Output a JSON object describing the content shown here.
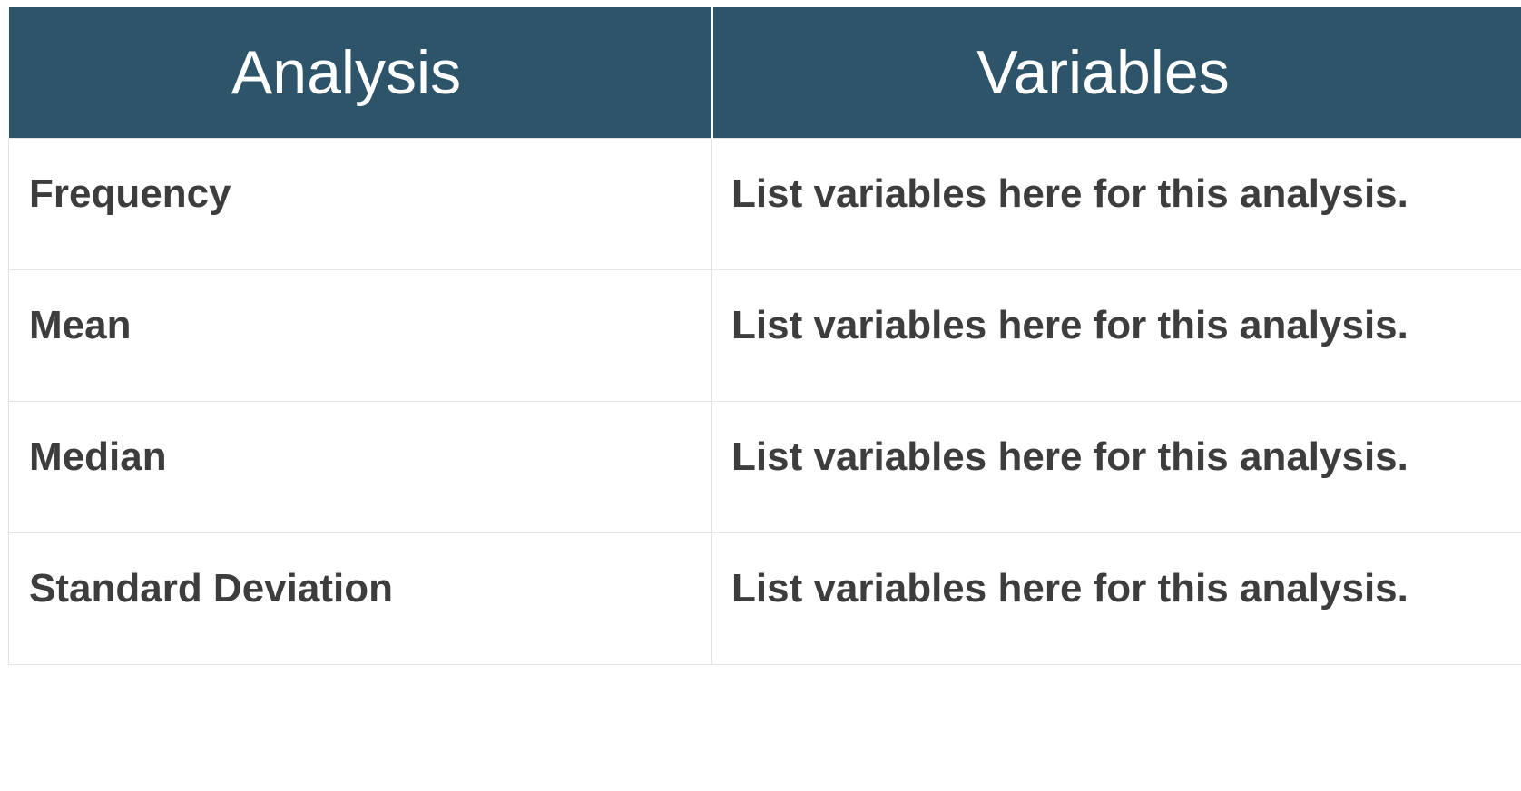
{
  "table": {
    "headers": {
      "analysis": "Analysis",
      "variables": "Variables"
    },
    "rows": [
      {
        "analysis": "Frequency",
        "variables": "List variables here for this analysis."
      },
      {
        "analysis": "Mean",
        "variables": "List variables here for this analysis."
      },
      {
        "analysis": "Median",
        "variables": "List variables here for this analysis."
      },
      {
        "analysis": "Standard Deviation",
        "variables": "List variables here for this analysis."
      }
    ],
    "colors": {
      "header_background": "#2e5469",
      "header_text": "#ffffff",
      "body_text": "#3d3d3d",
      "cell_border": "#e3e3e3"
    }
  }
}
